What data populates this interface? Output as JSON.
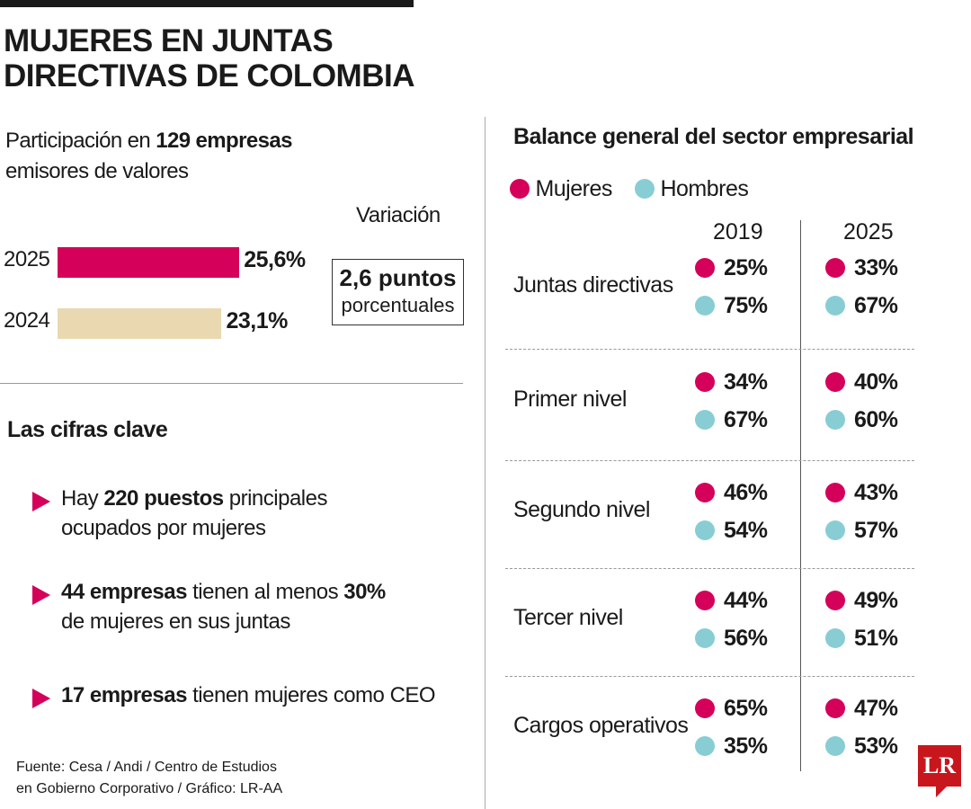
{
  "title_line1": "MUJERES EN JUNTAS",
  "title_line2": "DIRECTIVAS DE COLOMBIA",
  "subtitle": {
    "pre": "Participación en ",
    "bold": "129 empresas",
    "post": "emisores de valores"
  },
  "colors": {
    "mujeres": "#d4005a",
    "hombres": "#88cdd4",
    "bar_2024": "#ead8b1",
    "logo": "#c8161d"
  },
  "chart_data": [
    {
      "type": "bar",
      "orientation": "horizontal",
      "categories": [
        "2025",
        "2024"
      ],
      "values": [
        25.6,
        23.1
      ],
      "labels": [
        "25,6%",
        "23,1%"
      ],
      "variation": {
        "label": "Variación",
        "value": "2,6 puntos",
        "unit": "porcentuales"
      }
    },
    {
      "type": "table",
      "title": "Balance general del sector empresarial",
      "legend": [
        "Mujeres",
        "Hombres"
      ],
      "columns": [
        "2019",
        "2025"
      ],
      "rows": [
        {
          "label": "Juntas directivas",
          "y2019": {
            "mujeres": "25%",
            "hombres": "75%"
          },
          "y2025": {
            "mujeres": "33%",
            "hombres": "67%"
          }
        },
        {
          "label": "Primer nivel",
          "y2019": {
            "mujeres": "34%",
            "hombres": "67%"
          },
          "y2025": {
            "mujeres": "40%",
            "hombres": "60%"
          }
        },
        {
          "label": "Segundo nivel",
          "y2019": {
            "mujeres": "46%",
            "hombres": "54%"
          },
          "y2025": {
            "mujeres": "43%",
            "hombres": "57%"
          }
        },
        {
          "label": "Tercer nivel",
          "y2019": {
            "mujeres": "44%",
            "hombres": "56%"
          },
          "y2025": {
            "mujeres": "49%",
            "hombres": "51%"
          }
        },
        {
          "label": "Cargos operativos",
          "y2019": {
            "mujeres": "65%",
            "hombres": "35%"
          },
          "y2025": {
            "mujeres": "47%",
            "hombres": "53%"
          }
        }
      ]
    }
  ],
  "key_figures": {
    "title": "Las cifras clave",
    "items": [
      {
        "pre": "Hay ",
        "b1": "220 puestos",
        "mid": " principales",
        "line2": "ocupados por mujeres"
      },
      {
        "pre": "",
        "b1": "44 empresas",
        "mid": " tienen al menos ",
        "b2": "30%",
        "line2": "de mujeres en sus juntas"
      },
      {
        "pre": "",
        "b1": "17 empresas",
        "mid": " tienen mujeres como CEO",
        "line2": ""
      }
    ]
  },
  "source_line1": "Fuente: Cesa / Andi / Centro de Estudios",
  "source_line2": "en Gobierno Corporativo / Gráfico: LR-AA",
  "logo_text": "LR"
}
